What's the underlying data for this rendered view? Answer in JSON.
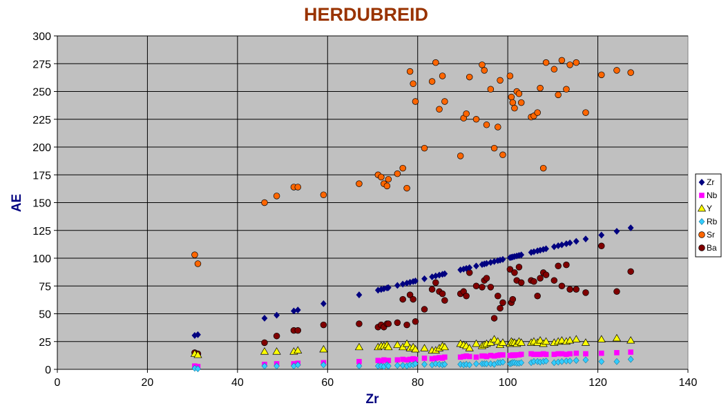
{
  "chart_data": {
    "type": "scatter",
    "title": "HERDUBREID",
    "xlabel": "Zr",
    "ylabel": "AE",
    "xlim": [
      0,
      140
    ],
    "ylim": [
      0,
      300
    ],
    "xticks": [
      0,
      20,
      40,
      60,
      80,
      100,
      120,
      140
    ],
    "yticks": [
      0,
      25,
      50,
      75,
      100,
      125,
      150,
      175,
      200,
      225,
      250,
      275,
      300
    ],
    "grid": "vertical and horizontal major gridlines",
    "legend_position": "right",
    "plot_background": "#c0c0c0",
    "x": [
      30.5,
      31.2,
      46,
      48.7,
      52.5,
      53.4,
      59.1,
      67,
      71.2,
      71.9,
      72.5,
      73.2,
      73.5,
      75.5,
      76.7,
      77.6,
      78.3,
      79,
      79.5,
      81.5,
      83.2,
      84,
      84.8,
      85.5,
      86,
      89.5,
      90.2,
      90.8,
      91.5,
      93,
      94.3,
      94.8,
      95.3,
      96.2,
      97,
      97.8,
      98.3,
      98.9,
      100.5,
      100.8,
      101.1,
      101.5,
      102,
      102.5,
      103,
      105.2,
      105.8,
      106.6,
      107.2,
      107.9,
      108.5,
      110.3,
      111.2,
      112,
      113,
      113.8,
      115.2,
      117.3,
      120.8,
      124.2,
      127.3
    ],
    "series": [
      {
        "name": "Zr",
        "color": "#000080",
        "marker": "diamond",
        "values": [
          30.5,
          31.2,
          46,
          48.7,
          52.5,
          53.4,
          59.1,
          67,
          71.2,
          71.9,
          72.5,
          73.2,
          73.5,
          75.5,
          76.7,
          77.6,
          78.3,
          79,
          79.5,
          81.5,
          83.2,
          84,
          84.8,
          85.5,
          86,
          89.5,
          90.2,
          90.8,
          91.5,
          93,
          94.3,
          94.8,
          95.3,
          96.2,
          97,
          97.8,
          98.3,
          98.9,
          100.5,
          100.8,
          101.1,
          101.5,
          102,
          102.5,
          103,
          105.2,
          105.8,
          106.6,
          107.2,
          107.9,
          108.5,
          110.3,
          111.2,
          112,
          113,
          113.8,
          115.2,
          117.3,
          120.8,
          124.2,
          127.3
        ]
      },
      {
        "name": "Nb",
        "color": "#ff00ff",
        "marker": "square",
        "values": [
          3,
          2.5,
          4.5,
          5,
          5,
          5.5,
          6,
          7,
          8,
          7.5,
          8.5,
          8,
          8,
          8.5,
          9,
          8.5,
          9,
          9.5,
          9,
          10,
          9.5,
          10,
          10.5,
          10,
          11,
          11,
          11.5,
          12,
          11.5,
          11,
          12,
          12,
          11.5,
          12.5,
          12,
          12.5,
          13,
          13,
          12.5,
          12.5,
          13,
          12.5,
          13,
          13,
          13.5,
          14,
          13.5,
          13.5,
          13.5,
          14,
          13.5,
          13.5,
          14,
          14,
          13.5,
          14,
          14.5,
          14,
          14.5,
          15,
          15.5
        ]
      },
      {
        "name": "Y",
        "color": "#ffff00",
        "marker": "triangle",
        "values": [
          14,
          13,
          16,
          16,
          16,
          17,
          18,
          20,
          20,
          21,
          21,
          22,
          20,
          22,
          20,
          23,
          19,
          20,
          18,
          19,
          17,
          17,
          19,
          21,
          20,
          23,
          22,
          21,
          19,
          23,
          21,
          22,
          23,
          24,
          27,
          25,
          22,
          24,
          23,
          25,
          24,
          24,
          23,
          25,
          24,
          24,
          25,
          24,
          26,
          23,
          25,
          24,
          25,
          26,
          25,
          26,
          27,
          24,
          27,
          28,
          26
        ]
      },
      {
        "name": "Rb",
        "color": "#33ccff",
        "marker": "diamond",
        "values": [
          1,
          0.5,
          3,
          3,
          3,
          4,
          4,
          3,
          3,
          3,
          2.5,
          4,
          3,
          3.5,
          3.5,
          3,
          4,
          4,
          5,
          4.5,
          4,
          5,
          4.5,
          4,
          4.5,
          4.5,
          4,
          4.5,
          4,
          5,
          5,
          5,
          5,
          5,
          4.5,
          6,
          6,
          6.5,
          5,
          5.5,
          6,
          6,
          5.5,
          5.5,
          6,
          6,
          7,
          7,
          6.5,
          7,
          7.5,
          6,
          6.5,
          7,
          7.5,
          7.5,
          8,
          8.5,
          7,
          7,
          9
        ]
      },
      {
        "name": "Sr",
        "color": "#ff6600",
        "marker": "circle",
        "values": [
          103,
          95,
          150,
          156,
          164,
          164,
          157,
          167,
          175,
          173,
          167,
          165,
          171,
          176,
          181,
          163,
          268,
          257,
          241,
          199,
          259,
          276,
          234,
          264,
          241,
          192,
          226,
          230,
          263,
          225,
          274,
          269,
          220,
          252,
          199,
          218,
          260,
          193,
          264,
          245,
          240,
          235,
          250,
          248,
          240,
          227,
          228,
          231,
          253,
          181,
          276,
          270,
          247,
          278,
          252,
          274,
          276,
          231,
          265,
          269,
          267
        ]
      },
      {
        "name": "Ba",
        "color": "#800000",
        "marker": "circle",
        "values": [
          15,
          14,
          24,
          30,
          35,
          35,
          40,
          41,
          38,
          40,
          38,
          41,
          41,
          42,
          63,
          40,
          67,
          63,
          43,
          54,
          72,
          78,
          70,
          68,
          62,
          68,
          70,
          66,
          87,
          75,
          74,
          80,
          82,
          74,
          46,
          66,
          55,
          60,
          90,
          60,
          63,
          87,
          80,
          92,
          78,
          80,
          79,
          66,
          82,
          87,
          85,
          80,
          93,
          75,
          94,
          72,
          72,
          69,
          111,
          70,
          88
        ]
      }
    ]
  }
}
